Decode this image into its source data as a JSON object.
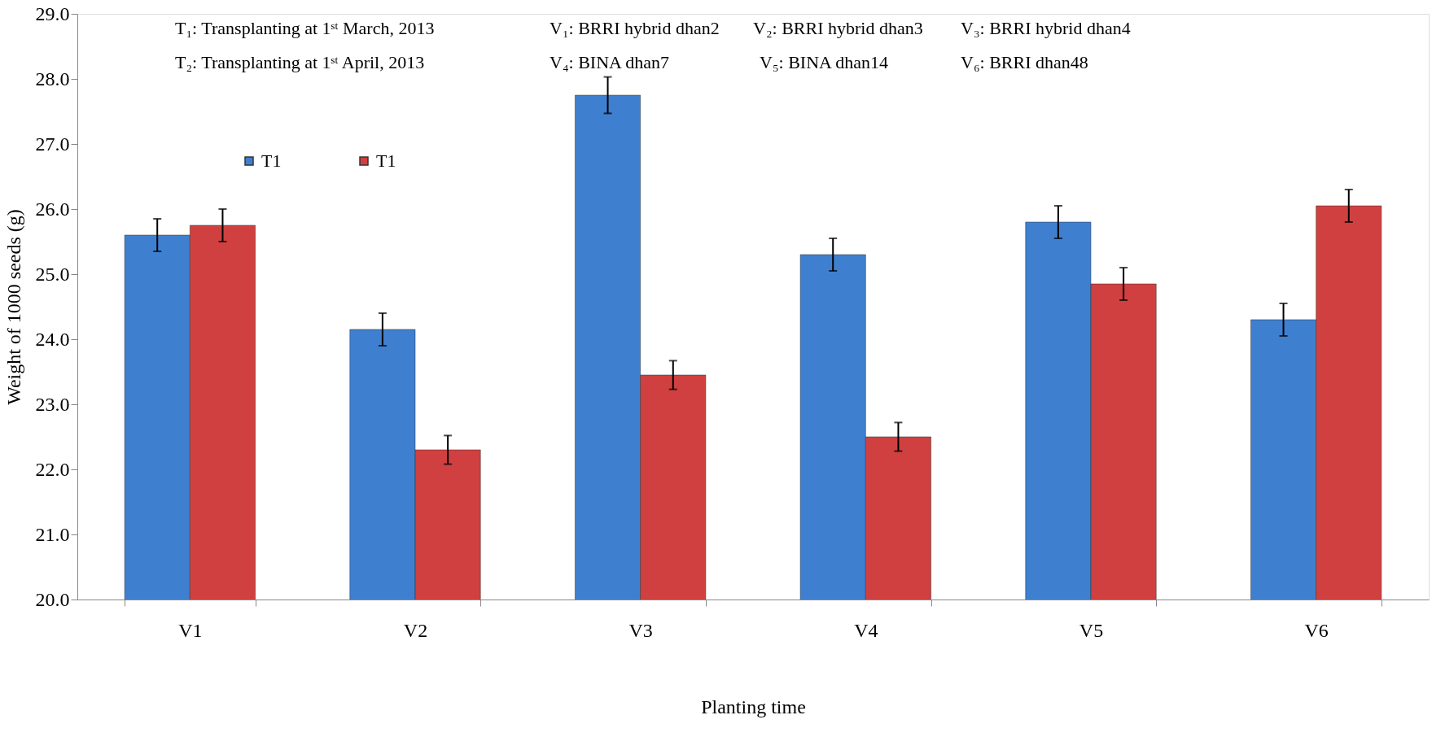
{
  "chart_data": {
    "type": "bar",
    "xlabel": "Planting time",
    "ylabel": "Weight of 1000 seeds (g)",
    "categories": [
      "V1",
      "V2",
      "V3",
      "V4",
      "V5",
      "V6"
    ],
    "series": [
      {
        "name": "T1",
        "color": "#3f7fd0",
        "values": [
          25.6,
          24.15,
          27.75,
          25.3,
          25.8,
          24.3
        ],
        "errors": [
          0.25,
          0.25,
          0.28,
          0.25,
          0.25,
          0.25
        ]
      },
      {
        "name": "T1",
        "color": "#d04040",
        "values": [
          25.75,
          22.3,
          23.45,
          22.5,
          24.85,
          26.05
        ],
        "errors": [
          0.25,
          0.22,
          0.22,
          0.22,
          0.25,
          0.25
        ]
      }
    ],
    "ylim": [
      20,
      29
    ],
    "yticks": [
      {
        "value": 20,
        "label": "20.0"
      },
      {
        "value": 21,
        "label": "21.0"
      },
      {
        "value": 22,
        "label": "22.0"
      },
      {
        "value": 23,
        "label": "23.0"
      },
      {
        "value": 24,
        "label": "24.0"
      },
      {
        "value": 25,
        "label": "25.0"
      },
      {
        "value": 26,
        "label": "26.0"
      },
      {
        "value": 27,
        "label": "27.0"
      },
      {
        "value": 28,
        "label": "28.0"
      },
      {
        "value": 29,
        "label": "29.0"
      }
    ],
    "grid": false,
    "legend": "top left",
    "annotations": [
      "T₁: Transplanting at 1ˢᵗ March, 2013",
      "V₁: BRRI hybrid dhan2",
      "V₂: BRRI hybrid dhan3",
      "V₃: BRRI hybrid dhan4",
      "T₂: Transplanting at 1ˢᵗ April, 2013",
      "V₄: BINA dhan7",
      "V₅: BINA dhan14",
      "V₆: BRRI dhan48"
    ]
  }
}
